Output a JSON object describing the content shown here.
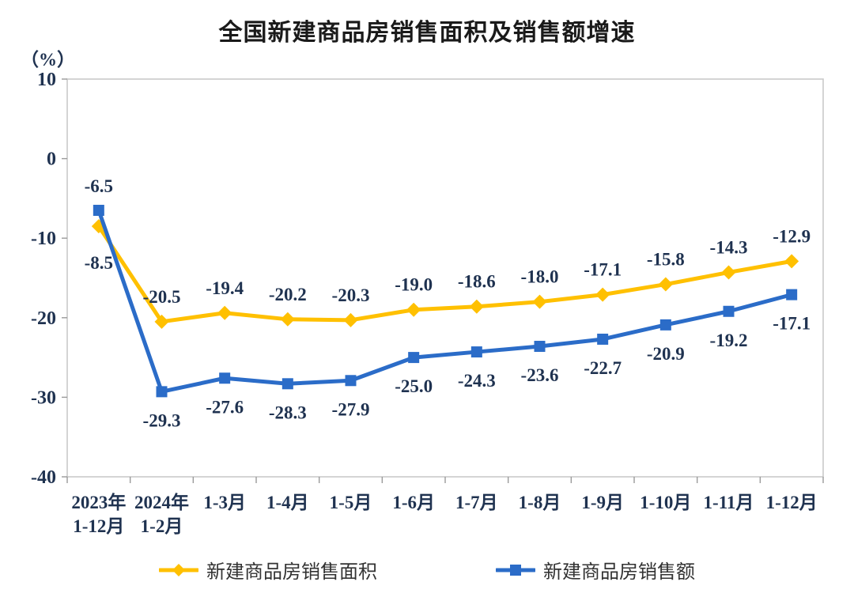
{
  "title": "全国新建商品房销售面积及销售额增速",
  "axis_unit": "（%）",
  "chart_data": {
    "type": "line",
    "title": "全国新建商品房销售面积及销售额增速",
    "ylabel": "（%）",
    "xlabel": "",
    "ylim": [
      -40,
      10
    ],
    "y_ticks": [
      10,
      0,
      -10,
      -20,
      -30,
      -40
    ],
    "grid": false,
    "legend_position": "bottom",
    "categories": [
      "2023年\n1-12月",
      "2024年\n1-2月",
      "1-3月",
      "1-4月",
      "1-5月",
      "1-6月",
      "1-7月",
      "1-8月",
      "1-9月",
      "1-10月",
      "1-11月",
      "1-12月"
    ],
    "series": [
      {
        "name": "新建商品房销售面积",
        "marker": "diamond",
        "color": "#FFC000",
        "label_position": "above",
        "values": [
          -8.5,
          -20.5,
          -19.4,
          -20.2,
          -20.3,
          -19.0,
          -18.6,
          -18.0,
          -17.1,
          -15.8,
          -14.3,
          -12.9
        ]
      },
      {
        "name": "新建商品房销售额",
        "marker": "square",
        "color": "#2B6CC8",
        "label_position": "below",
        "values": [
          -6.5,
          -29.3,
          -27.6,
          -28.3,
          -27.9,
          -25.0,
          -24.3,
          -23.6,
          -22.7,
          -20.9,
          -19.2,
          -17.1
        ]
      }
    ],
    "first_point_label_swap": true
  },
  "legend": {
    "items": [
      {
        "label": "新建商品房销售面积",
        "color": "#FFC000",
        "marker": "diamond"
      },
      {
        "label": "新建商品房销售额",
        "color": "#2B6CC8",
        "marker": "square"
      }
    ]
  },
  "colors": {
    "axis_line": "#c9c9c9",
    "tick": "#9a9a9a",
    "label_text": "#1f3250",
    "title_text": "#1a1a1a",
    "background": "#ffffff"
  }
}
